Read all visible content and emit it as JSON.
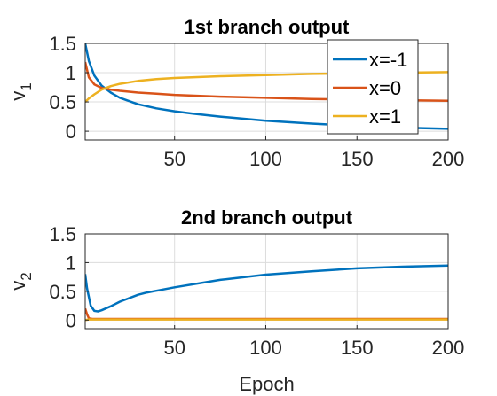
{
  "chart_data": [
    {
      "type": "line",
      "title": "1st branch output",
      "xlabel": "",
      "ylabel": "v",
      "ylabel_sub": "1",
      "xlim": [
        1,
        200
      ],
      "ylim": [
        -0.15,
        1.5
      ],
      "xticks": [
        50,
        100,
        150,
        200
      ],
      "yticks": [
        0,
        0.5,
        1,
        1.5
      ],
      "grid": true,
      "legend": "top-right",
      "series": [
        {
          "name": "x=-1",
          "color": "#0072BD",
          "x": [
            1,
            3,
            6,
            10,
            15,
            20,
            30,
            40,
            50,
            60,
            75,
            100,
            125,
            150,
            175,
            200
          ],
          "y": [
            1.5,
            1.2,
            0.95,
            0.78,
            0.66,
            0.57,
            0.46,
            0.39,
            0.34,
            0.3,
            0.25,
            0.18,
            0.13,
            0.09,
            0.06,
            0.04
          ]
        },
        {
          "name": "x=0",
          "color": "#D95319",
          "x": [
            1,
            3,
            6,
            10,
            15,
            20,
            30,
            40,
            50,
            75,
            100,
            125,
            150,
            175,
            200
          ],
          "y": [
            1.18,
            0.92,
            0.8,
            0.74,
            0.71,
            0.69,
            0.66,
            0.64,
            0.62,
            0.59,
            0.57,
            0.55,
            0.54,
            0.53,
            0.52
          ]
        },
        {
          "name": "x=1",
          "color": "#EDB120",
          "x": [
            1,
            3,
            6,
            10,
            15,
            20,
            30,
            40,
            50,
            75,
            100,
            125,
            150,
            175,
            200
          ],
          "y": [
            0.5,
            0.56,
            0.63,
            0.71,
            0.77,
            0.81,
            0.86,
            0.89,
            0.91,
            0.94,
            0.96,
            0.98,
            0.99,
            1.0,
            1.01
          ]
        }
      ]
    },
    {
      "type": "line",
      "title": "2nd branch output",
      "xlabel": "Epoch",
      "ylabel": "v",
      "ylabel_sub": "2",
      "xlim": [
        1,
        200
      ],
      "ylim": [
        -0.15,
        1.5
      ],
      "xticks": [
        50,
        100,
        150,
        200
      ],
      "yticks": [
        0,
        0.5,
        1,
        1.5
      ],
      "grid": true,
      "series": [
        {
          "name": "x=-1",
          "color": "#0072BD",
          "x": [
            1,
            2,
            4,
            6,
            8,
            10,
            15,
            20,
            30,
            35,
            40,
            50,
            75,
            100,
            125,
            150,
            175,
            200
          ],
          "y": [
            0.8,
            0.55,
            0.25,
            0.16,
            0.15,
            0.17,
            0.24,
            0.32,
            0.44,
            0.48,
            0.51,
            0.57,
            0.7,
            0.79,
            0.85,
            0.9,
            0.93,
            0.95
          ]
        },
        {
          "name": "x=0",
          "color": "#D95319",
          "x": [
            1,
            2,
            3,
            5,
            200
          ],
          "y": [
            0.2,
            0.1,
            0.03,
            0.02,
            0.02
          ]
        },
        {
          "name": "x=1",
          "color": "#EDB120",
          "x": [
            1,
            3,
            5,
            200
          ],
          "y": [
            0.0,
            0.01,
            0.01,
            0.01
          ]
        }
      ]
    }
  ]
}
